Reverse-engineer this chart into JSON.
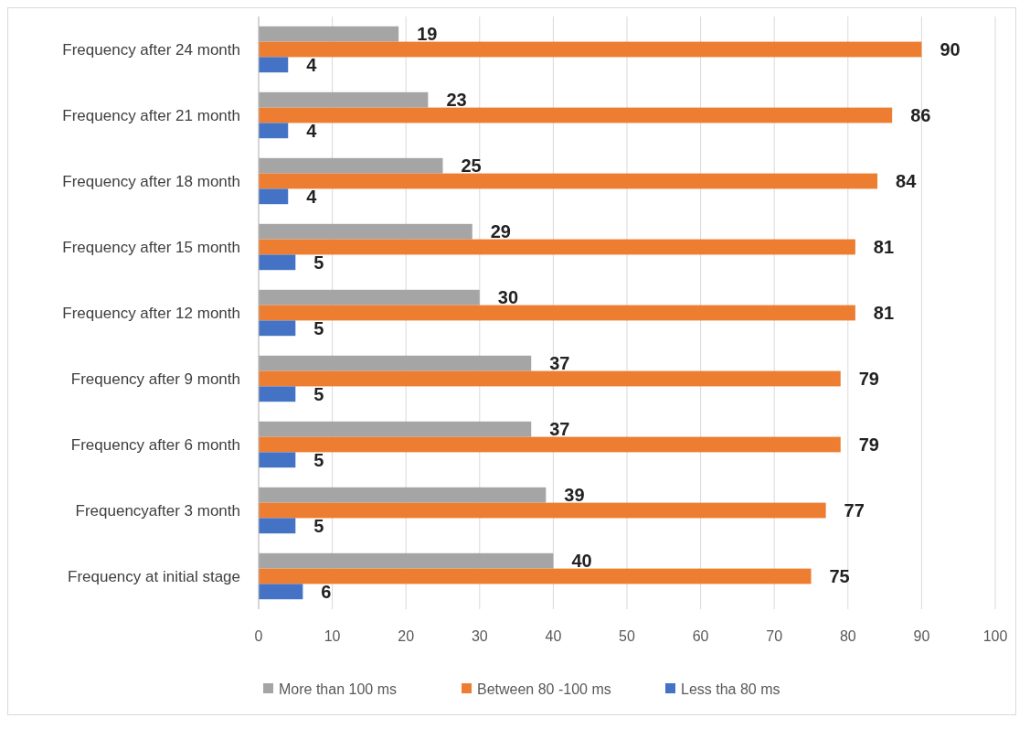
{
  "chart_data": {
    "type": "bar",
    "orientation": "horizontal",
    "categories": [
      "Frequency after 24 month",
      "Frequency after 21 month",
      "Frequency after 18 month",
      "Frequency after 15 month",
      "Frequency after 12 month",
      "Frequency after 9 month",
      "Frequency after 6 month",
      "Frequencyafter 3 month",
      "Frequency at initial stage"
    ],
    "series": [
      {
        "name": "More than 100 ms",
        "color": "#a5a5a5",
        "values": [
          19,
          23,
          25,
          29,
          30,
          37,
          37,
          39,
          40
        ]
      },
      {
        "name": "Between 80 -100 ms",
        "color": "#ed7d31",
        "values": [
          90,
          86,
          84,
          81,
          81,
          79,
          79,
          77,
          75
        ]
      },
      {
        "name": "Less tha 80 ms",
        "color": "#4472c4",
        "values": [
          4,
          4,
          4,
          5,
          5,
          5,
          5,
          5,
          6
        ]
      }
    ],
    "xlim": [
      0,
      100
    ],
    "xticks": [
      0,
      10,
      20,
      30,
      40,
      50,
      60,
      70,
      80,
      90,
      100
    ],
    "grid": "x",
    "legend": "bottom",
    "data_labels": true
  }
}
